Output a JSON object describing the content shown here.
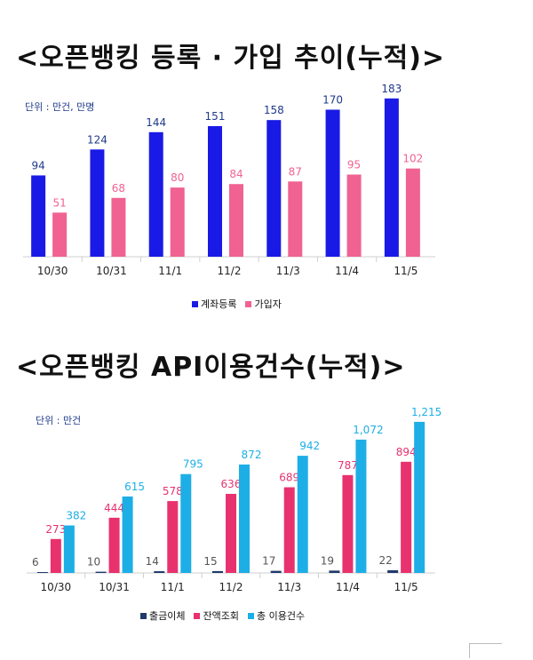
{
  "chart_data": [
    {
      "type": "bar",
      "title": "<오픈뱅킹 등록 · 가입 추이(누적)>",
      "unit_note": "단위 : 만건, 만명",
      "categories": [
        "10/30",
        "10/31",
        "11/1",
        "11/2",
        "11/3",
        "11/4",
        "11/5"
      ],
      "series": [
        {
          "name": "계좌등록",
          "color": "#1a1ae6",
          "label_color": "#1f3a8a",
          "values": [
            94,
            124,
            144,
            151,
            158,
            170,
            183
          ]
        },
        {
          "name": "가입자",
          "color": "#f06292",
          "label_color": "#f06292",
          "values": [
            51,
            68,
            80,
            84,
            87,
            95,
            102
          ]
        }
      ],
      "ylim": [
        0,
        190
      ],
      "grid": false,
      "legend": "bottom"
    },
    {
      "type": "bar",
      "title": "<오픈뱅킹 API이용건수(누적)>",
      "unit_note": "단위 : 만건",
      "categories": [
        "10/30",
        "10/31",
        "11/1",
        "11/2",
        "11/3",
        "11/4",
        "11/5"
      ],
      "series": [
        {
          "name": "출금이체",
          "color": "#1f3a6b",
          "label_color": "#555555",
          "labels": [
            "6",
            "10",
            "14",
            "15",
            "17",
            "19",
            "22"
          ],
          "values": [
            6,
            10,
            14,
            15,
            17,
            19,
            22
          ]
        },
        {
          "name": "잔액조회",
          "color": "#e8326e",
          "label_color": "#e8326e",
          "labels": [
            "273",
            "444",
            "578",
            "636",
            "689",
            "787",
            "894"
          ],
          "values": [
            273,
            444,
            578,
            636,
            689,
            787,
            894
          ]
        },
        {
          "name": "총 이용건수",
          "color": "#1eaee6",
          "label_color": "#1eaee6",
          "labels": [
            "382",
            "615",
            "795",
            "872",
            "942",
            "1,072",
            "1,215"
          ],
          "values": [
            382,
            615,
            795,
            872,
            942,
            1072,
            1215
          ]
        }
      ],
      "ylim": [
        0,
        1250
      ],
      "grid": false,
      "legend": "bottom"
    }
  ]
}
